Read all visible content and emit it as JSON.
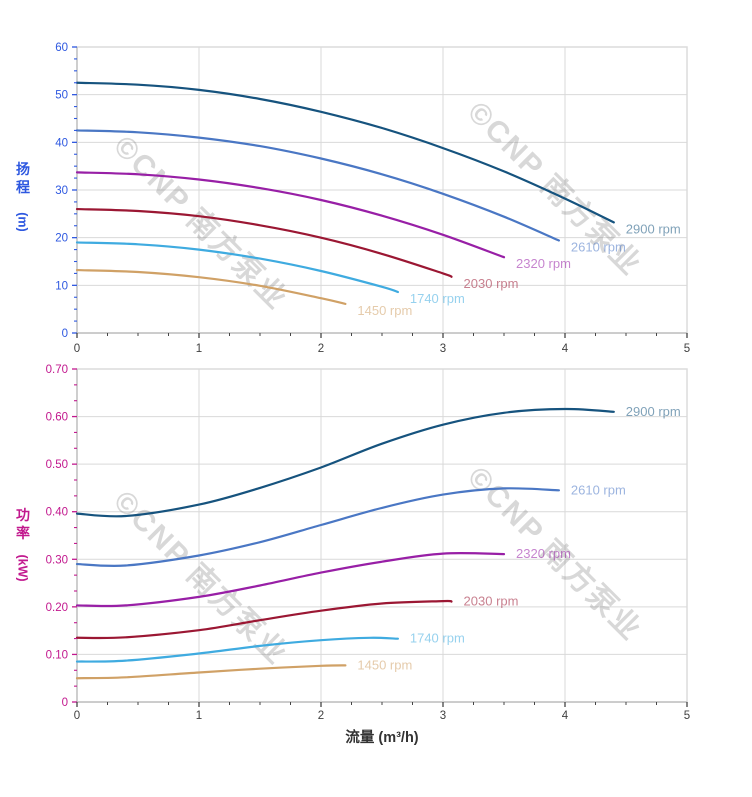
{
  "page": {
    "background": "#ffffff"
  },
  "watermark": {
    "text": "©CNP 南方泵业"
  },
  "axis_titles": {
    "head": {
      "char1": "扬",
      "char2": "程",
      "unit": "(m)"
    },
    "power": {
      "char1": "功",
      "char2": "率",
      "unit": "(kW)"
    },
    "x": "流量 (m³/h)"
  },
  "colors": {
    "head_axis": "#2e58e0",
    "power_axis": "#c2188e",
    "x_text": "#404040",
    "x_tick": "#444444",
    "grid": "#d9d9d9",
    "border": "#dcdcdc",
    "axis_line": "#c2c2c2",
    "watermark": "#808080"
  },
  "chart_data": [
    {
      "type": "line",
      "name": "head_vs_flow",
      "title": "",
      "ylabel": "扬程 (m)",
      "xlabel": "流量 (m³/h)",
      "xlim": [
        0,
        5
      ],
      "ylim": [
        0,
        60
      ],
      "grid": true,
      "legend_position": "end-of-line labels",
      "x_ticks": [
        0,
        1,
        2,
        3,
        4,
        5
      ],
      "x_tick_labels": [
        "0",
        "1",
        "2",
        "3",
        "4",
        "5"
      ],
      "x_subdivisions": 4,
      "y_ticks": [
        0,
        10,
        20,
        30,
        40,
        50,
        60
      ],
      "y_tick_labels": [
        "0",
        "10",
        "20",
        "30",
        "40",
        "50",
        "60"
      ],
      "y_subdivisions": 4,
      "series": [
        {
          "name": "2900 rpm",
          "color": "#16537e",
          "x": [
            0,
            0.5,
            1,
            1.5,
            2,
            2.5,
            3,
            3.5,
            4,
            4.4
          ],
          "y": [
            52.5,
            52.1,
            51.0,
            49.1,
            46.4,
            43.0,
            38.8,
            33.9,
            28.2,
            23.2
          ]
        },
        {
          "name": "2610 rpm",
          "color": "#4a77c4",
          "x": [
            0,
            0.5,
            1,
            1.5,
            2,
            2.5,
            3,
            3.5,
            3.95
          ],
          "y": [
            42.5,
            42.1,
            41.0,
            39.2,
            36.6,
            33.3,
            29.2,
            24.4,
            19.4
          ]
        },
        {
          "name": "2320 rpm",
          "color": "#981fa6",
          "x": [
            0,
            0.5,
            1,
            1.5,
            2,
            2.5,
            3,
            3.5
          ],
          "y": [
            33.7,
            33.3,
            32.2,
            30.4,
            27.9,
            24.6,
            20.6,
            15.9
          ]
        },
        {
          "name": "2030 rpm",
          "color": "#9b1733",
          "x": [
            0,
            0.5,
            1,
            1.5,
            2,
            2.5,
            3,
            3.07
          ],
          "y": [
            26.0,
            25.6,
            24.5,
            22.6,
            20.0,
            16.6,
            12.5,
            11.8
          ]
        },
        {
          "name": "1740 rpm",
          "color": "#3fabe0",
          "x": [
            0,
            0.5,
            1,
            1.5,
            2,
            2.5,
            2.63
          ],
          "y": [
            19.0,
            18.6,
            17.5,
            15.6,
            13.0,
            9.7,
            8.6
          ]
        },
        {
          "name": "1450 rpm",
          "color": "#d0a166",
          "x": [
            0,
            0.5,
            1,
            1.5,
            2,
            2.2
          ],
          "y": [
            13.2,
            12.8,
            11.7,
            9.9,
            7.3,
            6.1
          ]
        }
      ]
    },
    {
      "type": "line",
      "name": "power_vs_flow",
      "title": "",
      "ylabel": "功率 (kW)",
      "xlabel": "流量 (m³/h)",
      "xlim": [
        0,
        5
      ],
      "ylim": [
        0,
        0.7
      ],
      "grid": true,
      "legend_position": "end-of-line labels",
      "x_ticks": [
        0,
        1,
        2,
        3,
        4,
        5
      ],
      "x_tick_labels": [
        "0",
        "1",
        "2",
        "3",
        "4",
        "5"
      ],
      "x_subdivisions": 4,
      "y_ticks": [
        0,
        0.1,
        0.2,
        0.3,
        0.4,
        0.5,
        0.6,
        0.7
      ],
      "y_tick_labels": [
        "0",
        "0.10",
        "0.20",
        "0.30",
        "0.40",
        "0.50",
        "0.60",
        "0.70"
      ],
      "y_subdivisions": 3,
      "series": [
        {
          "name": "2900 rpm",
          "color": "#16537e",
          "x": [
            0,
            0.4,
            1,
            1.5,
            2,
            2.5,
            3,
            3.5,
            4,
            4.4
          ],
          "y": [
            0.396,
            0.391,
            0.415,
            0.45,
            0.493,
            0.543,
            0.583,
            0.608,
            0.616,
            0.61
          ]
        },
        {
          "name": "2610 rpm",
          "color": "#4a77c4",
          "x": [
            0,
            0.4,
            1,
            1.5,
            2,
            2.5,
            3,
            3.5,
            3.95
          ],
          "y": [
            0.29,
            0.287,
            0.308,
            0.336,
            0.372,
            0.408,
            0.436,
            0.449,
            0.445
          ]
        },
        {
          "name": "2320 rpm",
          "color": "#981fa6",
          "x": [
            0,
            0.4,
            1,
            1.5,
            2,
            2.5,
            3,
            3.5
          ],
          "y": [
            0.203,
            0.203,
            0.221,
            0.245,
            0.272,
            0.295,
            0.312,
            0.311
          ]
        },
        {
          "name": "2030 rpm",
          "color": "#9b1733",
          "x": [
            0,
            0.4,
            1,
            1.5,
            2,
            2.5,
            3,
            3.07
          ],
          "y": [
            0.135,
            0.136,
            0.151,
            0.172,
            0.192,
            0.207,
            0.212,
            0.211
          ]
        },
        {
          "name": "1740 rpm",
          "color": "#3fabe0",
          "x": [
            0,
            0.4,
            1,
            1.5,
            2,
            2.4,
            2.63
          ],
          "y": [
            0.085,
            0.087,
            0.102,
            0.118,
            0.13,
            0.135,
            0.133
          ]
        },
        {
          "name": "1450 rpm",
          "color": "#d0a166",
          "x": [
            0,
            0.4,
            1,
            1.5,
            2,
            2.2
          ],
          "y": [
            0.05,
            0.052,
            0.062,
            0.07,
            0.076,
            0.077
          ]
        }
      ]
    }
  ]
}
